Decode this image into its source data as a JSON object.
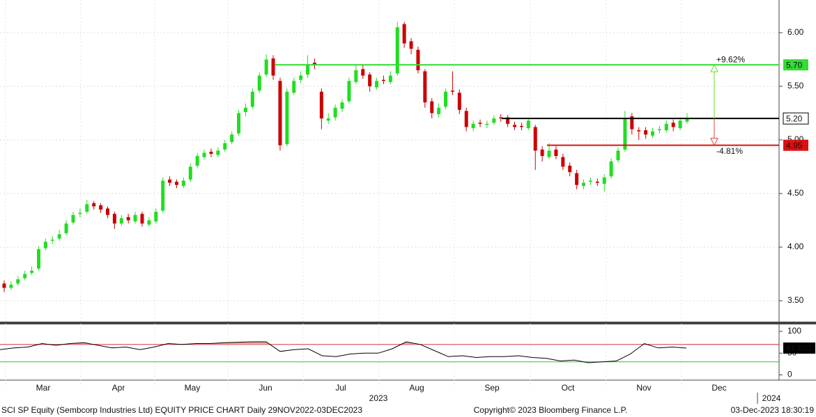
{
  "chart_data": {
    "type": "candlestick",
    "open": [
      3.66,
      3.62,
      3.66,
      3.71,
      3.76,
      3.8,
      3.99,
      4.06,
      4.08,
      4.13,
      4.23,
      4.31,
      4.33,
      4.41,
      4.39,
      4.36,
      4.31,
      4.22,
      4.28,
      4.24,
      4.31,
      4.21,
      4.24,
      4.34,
      4.63,
      4.61,
      4.57,
      4.63,
      4.76,
      4.84,
      4.89,
      4.86,
      4.91,
      4.98,
      5.06,
      5.26,
      5.31,
      5.46,
      5.61,
      5.76,
      5.55,
      4.96,
      5.44,
      5.56,
      5.61,
      5.72,
      5.45,
      5.18,
      5.21,
      5.29,
      5.36,
      5.54,
      5.66,
      5.61,
      5.49,
      5.56,
      5.54,
      5.62,
      6.08,
      5.92,
      5.84,
      5.64,
      5.36,
      5.24,
      5.31,
      5.46,
      5.44,
      5.27,
      5.11,
      5.16,
      5.14,
      5.16,
      5.21,
      5.21,
      5.14,
      5.13,
      5.11,
      5.12,
      4.91,
      4.84,
      4.91,
      4.84,
      4.76,
      4.69,
      4.57,
      4.61,
      4.61,
      4.59,
      4.66,
      4.81,
      4.91,
      5.22,
      5.09,
      5.09,
      5.04,
      5.09,
      5.09,
      5.16,
      5.11,
      5.17
    ],
    "high": [
      3.69,
      3.68,
      3.73,
      3.78,
      3.82,
      4.01,
      4.08,
      4.1,
      4.16,
      4.25,
      4.33,
      4.36,
      4.44,
      4.43,
      4.41,
      4.38,
      4.33,
      4.3,
      4.31,
      4.33,
      4.33,
      4.28,
      4.36,
      4.65,
      4.66,
      4.63,
      4.65,
      4.78,
      4.88,
      4.91,
      4.92,
      4.93,
      5.0,
      5.08,
      5.28,
      5.34,
      5.48,
      5.63,
      5.8,
      5.79,
      5.58,
      5.48,
      5.58,
      5.64,
      5.79,
      5.76,
      5.48,
      5.25,
      5.33,
      5.38,
      5.58,
      5.7,
      5.7,
      5.63,
      5.58,
      5.6,
      5.64,
      6.1,
      6.1,
      5.95,
      5.87,
      5.66,
      5.39,
      5.34,
      5.48,
      5.64,
      5.47,
      5.3,
      5.18,
      5.19,
      5.18,
      5.23,
      5.24,
      5.23,
      5.17,
      5.16,
      5.21,
      5.14,
      4.94,
      4.97,
      4.94,
      4.87,
      4.79,
      4.72,
      4.63,
      4.65,
      4.64,
      4.68,
      4.83,
      4.93,
      5.27,
      5.25,
      5.12,
      5.12,
      5.11,
      5.13,
      5.18,
      5.19,
      5.21,
      5.25
    ],
    "low": [
      3.58,
      3.6,
      3.64,
      3.69,
      3.74,
      3.78,
      3.97,
      4.03,
      4.06,
      4.11,
      4.21,
      4.28,
      4.31,
      4.35,
      4.32,
      4.27,
      4.17,
      4.2,
      4.22,
      4.22,
      4.19,
      4.19,
      4.22,
      4.32,
      4.57,
      4.55,
      4.55,
      4.61,
      4.74,
      4.82,
      4.84,
      4.84,
      4.89,
      4.96,
      5.04,
      5.22,
      5.29,
      5.44,
      5.59,
      5.56,
      4.9,
      4.94,
      5.42,
      5.53,
      5.58,
      5.66,
      5.1,
      5.15,
      5.18,
      5.26,
      5.34,
      5.52,
      5.57,
      5.45,
      5.47,
      5.52,
      5.52,
      5.6,
      5.86,
      5.8,
      5.62,
      5.3,
      5.2,
      5.21,
      5.29,
      5.42,
      5.24,
      5.08,
      5.08,
      5.12,
      5.11,
      5.14,
      5.17,
      5.12,
      5.09,
      5.09,
      5.09,
      4.72,
      4.8,
      4.82,
      4.82,
      4.72,
      4.66,
      4.54,
      4.54,
      4.58,
      4.57,
      4.52,
      4.64,
      4.79,
      4.89,
      5.05,
      5.0,
      5.01,
      5.02,
      5.06,
      5.07,
      5.08,
      5.09,
      5.15
    ],
    "close": [
      3.62,
      3.65,
      3.7,
      3.75,
      3.78,
      3.98,
      4.05,
      4.07,
      4.12,
      4.22,
      4.3,
      4.32,
      4.4,
      4.38,
      4.35,
      4.3,
      4.22,
      4.27,
      4.25,
      4.3,
      4.22,
      4.25,
      4.33,
      4.62,
      4.6,
      4.58,
      4.62,
      4.75,
      4.85,
      4.88,
      4.87,
      4.9,
      4.97,
      5.05,
      5.25,
      5.3,
      5.45,
      5.6,
      5.75,
      5.6,
      4.95,
      5.45,
      5.55,
      5.6,
      5.7,
      5.7,
      5.2,
      5.2,
      5.3,
      5.35,
      5.55,
      5.65,
      5.6,
      5.5,
      5.55,
      5.55,
      5.6,
      6.05,
      5.9,
      5.85,
      5.65,
      5.35,
      5.25,
      5.3,
      5.45,
      5.45,
      5.28,
      5.12,
      5.15,
      5.15,
      5.15,
      5.2,
      5.2,
      5.15,
      5.12,
      5.12,
      5.18,
      4.9,
      4.85,
      4.9,
      4.85,
      4.75,
      4.7,
      4.58,
      4.6,
      4.62,
      4.6,
      4.65,
      4.8,
      4.9,
      5.2,
      5.1,
      5.08,
      5.05,
      5.08,
      5.1,
      5.15,
      5.12,
      5.18,
      5.2
    ],
    "up_color": "#22dd22",
    "down_color": "#cc0000",
    "ylim": [
      3.305,
      6.305
    ],
    "yticks": [
      {
        "value": 3.5,
        "label": "3.50"
      },
      {
        "value": 4.0,
        "label": "4.00"
      },
      {
        "value": 4.5,
        "label": "4.50"
      },
      {
        "value": 5.0,
        "label": "5.00"
      },
      {
        "value": 5.5,
        "label": "5.50"
      },
      {
        "value": 6.0,
        "label": "6.00"
      }
    ],
    "grid": true,
    "x_labels": [
      "Mar",
      "Apr",
      "May",
      "Jun",
      "Jul",
      "Aug",
      "Sep",
      "Oct",
      "Nov",
      "Dec"
    ],
    "year_labels": [
      "2023",
      "2024"
    ],
    "levels": [
      {
        "value": 5.7,
        "label": "5.70",
        "color": "#33dd33"
      },
      {
        "value": 5.2,
        "label": "5.20",
        "color": "#000000"
      },
      {
        "value": 4.95,
        "label": "4.95",
        "color": "#dd1111"
      }
    ],
    "annotations": [
      "+9.62%",
      "-4.81%"
    ],
    "rsi": {
      "values": [
        58,
        62,
        64,
        72,
        68,
        72,
        74,
        68,
        62,
        64,
        58,
        64,
        72,
        70,
        72,
        72,
        74,
        75,
        76,
        76,
        54,
        58,
        60,
        44,
        42,
        48,
        50,
        50,
        60,
        76,
        70,
        56,
        42,
        44,
        40,
        42,
        42,
        44,
        40,
        38,
        32,
        34,
        28,
        30,
        32,
        48,
        72,
        62,
        64,
        61.603
      ],
      "last_label": "61.603",
      "ylim": [
        -12,
        116
      ],
      "yticks": [
        0,
        50,
        100
      ],
      "levels": [
        70,
        30
      ],
      "level_colors": [
        "#cc2222",
        "#22cc22"
      ]
    },
    "footer": {
      "left": "SCI SP Equity (Sembcorp Industries Ltd) EQUITY PRICE CHART  Daily 29NOV2022-03DEC2023",
      "center": "Copyright© 2023 Bloomberg Finance L.P.",
      "right": "03-Dec-2023 18:30:19"
    }
  }
}
